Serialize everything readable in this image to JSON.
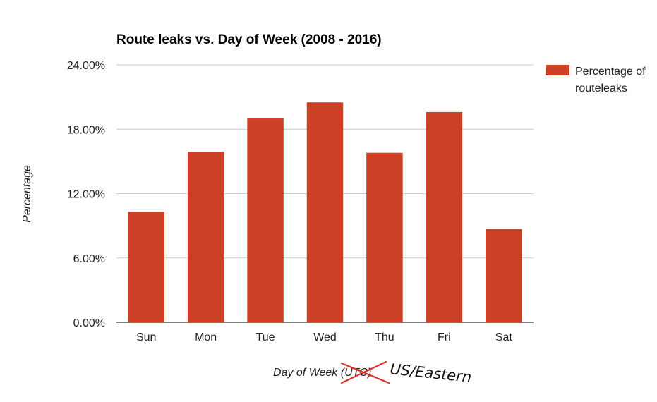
{
  "chart_data": {
    "type": "bar",
    "title": "Route leaks vs. Day of Week (2008 - 2016)",
    "xlabel": "Day of Week (UTC)",
    "ylabel": "Percentage",
    "categories": [
      "Sun",
      "Mon",
      "Tue",
      "Wed",
      "Thu",
      "Fri",
      "Sat"
    ],
    "series": [
      {
        "name": "Percentage of routeleaks",
        "values": [
          10.3,
          15.9,
          19.0,
          20.5,
          15.8,
          19.6,
          8.7
        ],
        "color": "#cc4125"
      }
    ],
    "ylim": [
      0,
      24
    ],
    "yticks": [
      "0.00%",
      "6.00%",
      "12.00%",
      "18.00%",
      "24.00%"
    ],
    "legend": {
      "position": "right",
      "lines": [
        "Percentage of",
        "routeleaks"
      ]
    },
    "grid": true,
    "annotation": {
      "struck_text": "UTC",
      "handwritten_text": "US/Eastern",
      "strike_color": "#e0302a"
    }
  }
}
